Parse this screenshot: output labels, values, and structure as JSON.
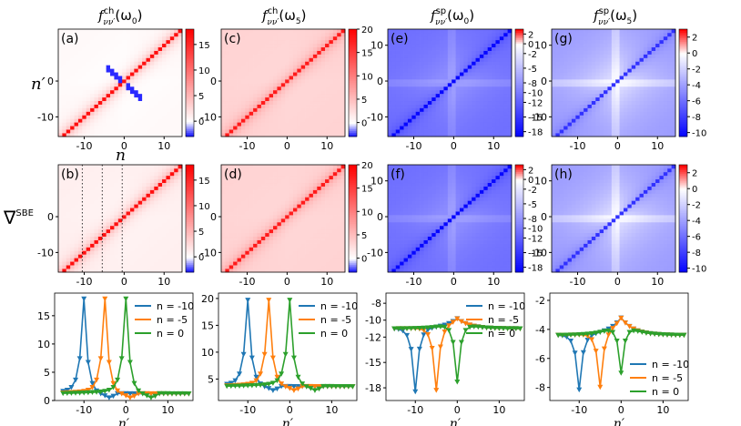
{
  "figure": {
    "row_label_nprime": "n′",
    "row_label_n": "n",
    "row_label_sbe": "∇",
    "row_label_sbe_sup": "SBE"
  },
  "columns": [
    {
      "title_main": "f",
      "title_sup": "ch",
      "title_sub": "νν′",
      "title_arg": "(ω",
      "title_arg_sub": "0",
      "title_close": ")"
    },
    {
      "title_main": "f",
      "title_sup": "ch",
      "title_sub": "νν′",
      "title_arg": "(ω",
      "title_arg_sub": "5",
      "title_close": ")"
    },
    {
      "title_main": "f",
      "title_sup": "sp",
      "title_sub": "νν′",
      "title_arg": "(ω",
      "title_arg_sub": "0",
      "title_close": ")"
    },
    {
      "title_main": "f",
      "title_sup": "sp",
      "title_sub": "νν′",
      "title_arg": "(ω",
      "title_arg_sub": "5",
      "title_close": ")"
    }
  ],
  "chart_data": [
    {
      "type": "heatmap",
      "panel": "(a)",
      "row": 1,
      "col": 1,
      "kind": "ch",
      "xlim": [
        -16,
        15
      ],
      "ylim": [
        -15,
        15
      ],
      "xticks": [
        -10,
        0,
        10
      ],
      "yticks": [
        -10,
        0
      ],
      "clim": [
        -3,
        18
      ],
      "cbar_ticks": [
        0,
        5,
        10,
        15
      ],
      "diag": 17,
      "offdiag": 0.5,
      "neg_feature": true
    },
    {
      "type": "heatmap",
      "panel": "(c)",
      "row": 1,
      "col": 2,
      "kind": "ch",
      "xlim": [
        -16,
        15
      ],
      "ylim": [
        -15,
        15
      ],
      "xticks": [
        -10,
        0,
        10
      ],
      "yticks": [
        -10,
        0
      ],
      "clim": [
        -3,
        20
      ],
      "cbar_ticks": [
        0,
        5,
        10,
        15,
        20
      ],
      "diag": 18,
      "offdiag": 3.5,
      "neg_feature": false
    },
    {
      "type": "heatmap",
      "panel": "(e)",
      "row": 1,
      "col": 3,
      "kind": "sp",
      "xlim": [
        -16,
        15
      ],
      "ylim": [
        -15,
        15
      ],
      "xticks": [
        -10,
        0,
        10
      ],
      "yticks": [
        -10,
        0,
        10
      ],
      "clim": [
        -19,
        3
      ],
      "cbar_ticks": [
        2,
        0,
        -2,
        -5,
        -8,
        -10,
        -12,
        -15,
        -18
      ],
      "diag": -18.5,
      "offdiag": -11,
      "neg_feature": false
    },
    {
      "type": "heatmap",
      "panel": "(g)",
      "row": 1,
      "col": 4,
      "kind": "sp",
      "xlim": [
        -16,
        15
      ],
      "ylim": [
        -15,
        15
      ],
      "xticks": [
        -10,
        0,
        10
      ],
      "yticks": [
        -10,
        0,
        10
      ],
      "clim": [
        -10.5,
        3
      ],
      "cbar_ticks": [
        2,
        0,
        -2,
        -4,
        -6,
        -8,
        -10
      ],
      "diag": -8.5,
      "offdiag": -4.3,
      "neg_feature": false
    },
    {
      "type": "heatmap",
      "panel": "(b)",
      "row": 2,
      "col": 1,
      "kind": "ch",
      "xlim": [
        -16,
        15
      ],
      "ylim": [
        -15,
        15
      ],
      "xticks": [
        -10,
        0,
        10
      ],
      "yticks": [
        -10,
        0
      ],
      "clim": [
        -3,
        18
      ],
      "cbar_ticks": [
        0,
        5,
        10,
        15
      ],
      "diag": 17,
      "offdiag": 1.2,
      "neg_feature": false,
      "vlines": [
        -10,
        -5,
        0
      ]
    },
    {
      "type": "heatmap",
      "panel": "(d)",
      "row": 2,
      "col": 2,
      "kind": "ch",
      "xlim": [
        -16,
        15
      ],
      "ylim": [
        -15,
        15
      ],
      "xticks": [
        -10,
        0,
        10
      ],
      "yticks": [
        -10,
        0
      ],
      "clim": [
        -3,
        20
      ],
      "cbar_ticks": [
        0,
        5,
        10,
        15,
        20
      ],
      "diag": 18,
      "offdiag": 3.5,
      "neg_feature": false
    },
    {
      "type": "heatmap",
      "panel": "(f)",
      "row": 2,
      "col": 3,
      "kind": "sp",
      "xlim": [
        -16,
        15
      ],
      "ylim": [
        -15,
        15
      ],
      "xticks": [
        -10,
        0,
        10
      ],
      "yticks": [
        -10,
        0,
        10
      ],
      "clim": [
        -19,
        3
      ],
      "cbar_ticks": [
        2,
        0,
        -2,
        -5,
        -8,
        -10,
        -12,
        -15,
        -18
      ],
      "diag": -18.5,
      "offdiag": -11,
      "neg_feature": false
    },
    {
      "type": "heatmap",
      "panel": "(h)",
      "row": 2,
      "col": 4,
      "kind": "sp",
      "xlim": [
        -16,
        15
      ],
      "ylim": [
        -15,
        15
      ],
      "xticks": [
        -10,
        0,
        10
      ],
      "yticks": [
        -10,
        0,
        10
      ],
      "clim": [
        -10.5,
        3
      ],
      "cbar_ticks": [
        2,
        0,
        -2,
        -4,
        -6,
        -8,
        -10
      ],
      "diag": -8.5,
      "offdiag": -4.3,
      "neg_feature": false
    },
    {
      "type": "line",
      "panel": "line-1",
      "row": 3,
      "col": 1,
      "kind": "ch",
      "xlim": [
        -17,
        16
      ],
      "ylim": [
        0,
        19
      ],
      "xticks": [
        -10,
        0,
        10
      ],
      "yticks": [
        0,
        5,
        10,
        15
      ],
      "xlabel": "n′",
      "base": 1.2,
      "peak": 17.8,
      "legend_pos": "top-right",
      "series": [
        {
          "name": "n = -10",
          "n": -10,
          "color": "#1f77b4"
        },
        {
          "name": "n = -5",
          "n": -5,
          "color": "#ff7f0e"
        },
        {
          "name": "n = 0",
          "n": 0,
          "color": "#2ca02c"
        }
      ]
    },
    {
      "type": "line",
      "panel": "line-2",
      "row": 3,
      "col": 2,
      "kind": "ch",
      "xlim": [
        -17,
        16
      ],
      "ylim": [
        1,
        21
      ],
      "xticks": [
        -10,
        0,
        10
      ],
      "yticks": [
        5,
        10,
        15,
        20
      ],
      "xlabel": "n′",
      "base": 3.6,
      "peak": 19.5,
      "legend_pos": "top-right",
      "series": [
        {
          "name": "n = -10",
          "n": -10,
          "color": "#1f77b4"
        },
        {
          "name": "n = -5",
          "n": -5,
          "color": "#ff7f0e"
        },
        {
          "name": "n = 0",
          "n": 0,
          "color": "#2ca02c"
        }
      ]
    },
    {
      "type": "line",
      "panel": "line-3",
      "row": 3,
      "col": 3,
      "kind": "sp",
      "xlim": [
        -17,
        16
      ],
      "ylim": [
        -19.5,
        -6.8
      ],
      "xticks": [
        -10,
        0,
        10
      ],
      "yticks": [
        -8,
        -10,
        -12,
        -15,
        -18
      ],
      "xlabel": "n′",
      "base": -11,
      "peak": -18.5,
      "legend_pos": "top-right",
      "series": [
        {
          "name": "n = -10",
          "n": -10,
          "color": "#1f77b4"
        },
        {
          "name": "n = -5",
          "n": -5,
          "color": "#ff7f0e"
        },
        {
          "name": "n = 0",
          "n": 0,
          "color": "#2ca02c"
        }
      ]
    },
    {
      "type": "line",
      "panel": "line-4",
      "row": 3,
      "col": 4,
      "kind": "sp",
      "xlim": [
        -17,
        16
      ],
      "ylim": [
        -8.9,
        -1.5
      ],
      "xticks": [
        -10,
        0,
        10
      ],
      "yticks": [
        -2,
        -4,
        -6,
        -8
      ],
      "xlabel": "n′",
      "base": -4.4,
      "peak": -8.2,
      "legend_pos": "lower-right",
      "series": [
        {
          "name": "n = -10",
          "n": -10,
          "color": "#1f77b4"
        },
        {
          "name": "n = -5",
          "n": -5,
          "color": "#ff7f0e"
        },
        {
          "name": "n = 0",
          "n": 0,
          "color": "#2ca02c"
        }
      ]
    }
  ]
}
